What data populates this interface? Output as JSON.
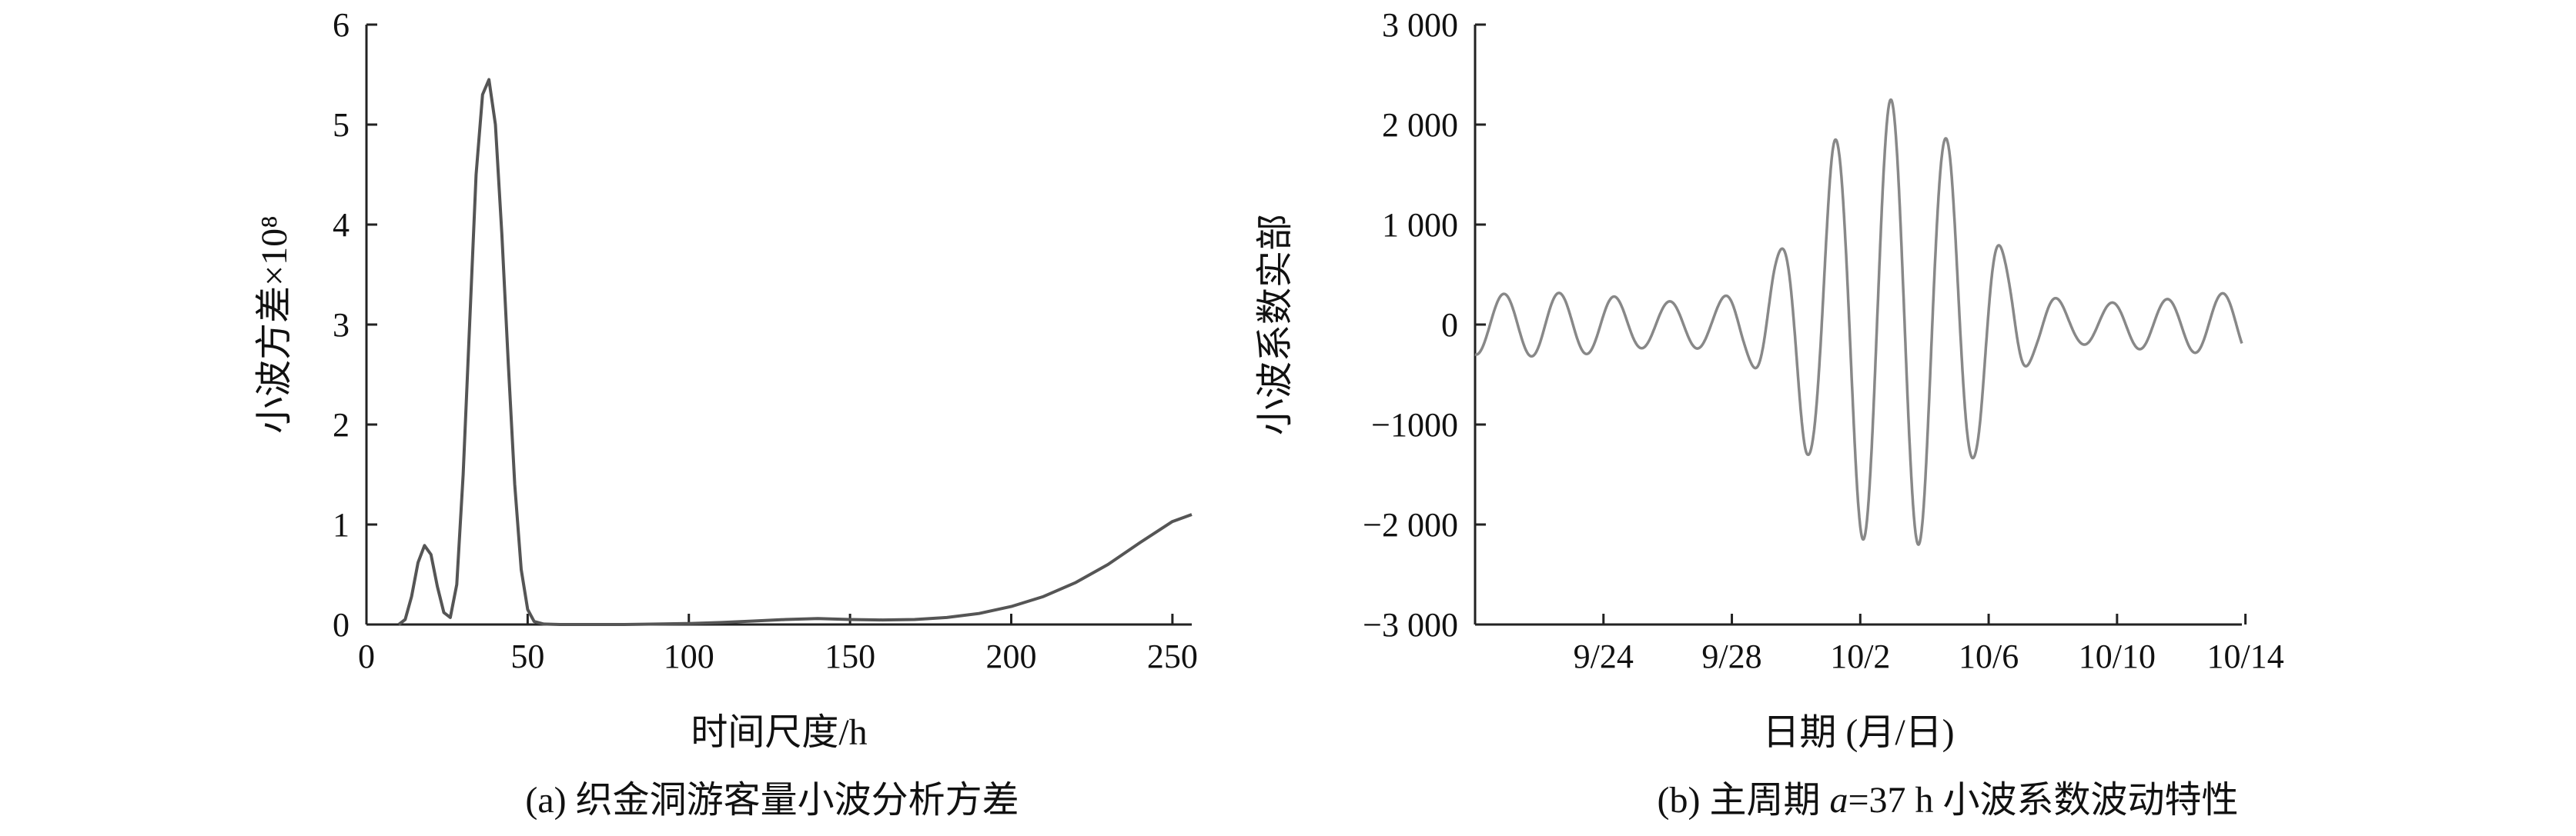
{
  "chart_data": [
    {
      "type": "line",
      "caption": "(a) 织金洞游客量小波分析方差",
      "xlabel": "时间尺度/h",
      "ylabel": "小波方差×10⁸",
      "xlim": [
        0,
        256
      ],
      "ylim": [
        0,
        6
      ],
      "x_ticks": [
        {
          "v": 0,
          "label": "0"
        },
        {
          "v": 50,
          "label": "50"
        },
        {
          "v": 100,
          "label": "100"
        },
        {
          "v": 150,
          "label": "150"
        },
        {
          "v": 200,
          "label": "200"
        },
        {
          "v": 250,
          "label": "250"
        }
      ],
      "y_ticks": [
        {
          "v": 0,
          "label": "0"
        },
        {
          "v": 1,
          "label": "1"
        },
        {
          "v": 2,
          "label": "2"
        },
        {
          "v": 3,
          "label": "3"
        },
        {
          "v": 4,
          "label": "4"
        },
        {
          "v": 5,
          "label": "5"
        },
        {
          "v": 6,
          "label": "6"
        }
      ],
      "color": "#555555",
      "series": [
        {
          "x": [
            10,
            12,
            14,
            16,
            18,
            20,
            22,
            24,
            26,
            28,
            30,
            32,
            34,
            36,
            38,
            40,
            42,
            44,
            46,
            48,
            50,
            52,
            55,
            60,
            70,
            80,
            90,
            100,
            110,
            120,
            130,
            140,
            150,
            160,
            170,
            180,
            190,
            200,
            210,
            220,
            230,
            240,
            250,
            256
          ],
          "y": [
            0,
            0.05,
            0.28,
            0.62,
            0.79,
            0.7,
            0.38,
            0.12,
            0.07,
            0.4,
            1.5,
            3.0,
            4.5,
            5.3,
            5.45,
            5.0,
            3.9,
            2.6,
            1.4,
            0.55,
            0.15,
            0.03,
            0.005,
            0,
            0,
            0,
            0.005,
            0.01,
            0.02,
            0.035,
            0.05,
            0.06,
            0.05,
            0.045,
            0.05,
            0.07,
            0.11,
            0.18,
            0.28,
            0.42,
            0.6,
            0.82,
            1.03,
            1.1
          ]
        }
      ]
    },
    {
      "type": "line",
      "caption": "(b) 主周期 a=37 h 小波系数波动特性",
      "caption_parts": {
        "pre": "(b) 主周期 ",
        "italic": "a",
        "post": "=37 h 小波系数波动特性"
      },
      "xlabel": "日期 (月/日)",
      "ylabel": "小波系数实部",
      "xlim": [
        0,
        21.5
      ],
      "ylim": [
        -3000,
        3000
      ],
      "x_ticks": [
        {
          "v": 4,
          "label": "9/24"
        },
        {
          "v": 8,
          "label": "9/28"
        },
        {
          "v": 12,
          "label": "10/2"
        },
        {
          "v": 16,
          "label": "10/6"
        },
        {
          "v": 20,
          "label": "10/10"
        },
        {
          "v": 24,
          "label": "10/14"
        }
      ],
      "x_tick_scale": 0.9,
      "y_ticks": [
        {
          "v": -3000,
          "label": "−3 000"
        },
        {
          "v": -2000,
          "label": "−2 000"
        },
        {
          "v": -1000,
          "label": "−1000"
        },
        {
          "v": 0,
          "label": "0"
        },
        {
          "v": 1000,
          "label": "1 000"
        },
        {
          "v": 2000,
          "label": "2 000"
        },
        {
          "v": 3000,
          "label": "3 000"
        }
      ],
      "color": "#888888",
      "oscillation": {
        "period_days": 1.55,
        "phase_start": -1.7,
        "amplitude_points": [
          [
            0,
            300
          ],
          [
            2,
            320
          ],
          [
            3.5,
            290
          ],
          [
            5,
            230
          ],
          [
            6.5,
            240
          ],
          [
            7.5,
            330
          ],
          [
            8.4,
            700
          ],
          [
            9.3,
            1300
          ],
          [
            10.1,
            1850
          ],
          [
            10.9,
            2150
          ],
          [
            11.7,
            2250
          ],
          [
            12.5,
            2200
          ],
          [
            13.3,
            1850
          ],
          [
            14.1,
            1300
          ],
          [
            15.0,
            650
          ],
          [
            15.8,
            300
          ],
          [
            17,
            200
          ],
          [
            19,
            250
          ],
          [
            21.5,
            320
          ]
        ]
      }
    }
  ]
}
